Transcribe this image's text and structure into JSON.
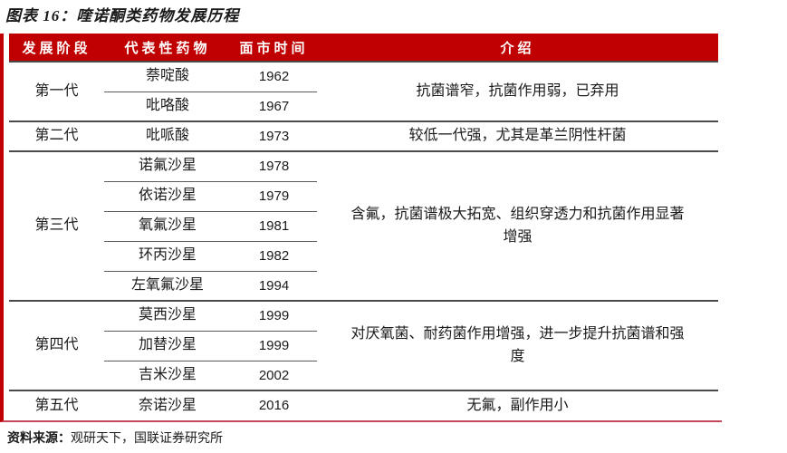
{
  "title": "图表 16：喹诺酮类药物发展历程",
  "colors": {
    "header_bg": "#c00000",
    "left_stripe": "#c00000",
    "bottom_rule": "#c4465a",
    "group_rule": "#4a4a4a"
  },
  "table": {
    "headers": {
      "stage": "发展阶段",
      "drug": "代表性药物",
      "year": "面市时间",
      "intro": "介绍"
    },
    "groups": [
      {
        "stage": "第一代",
        "drugs": [
          {
            "name": "萘啶酸",
            "year": "1962"
          },
          {
            "name": "吡咯酸",
            "year": "1967"
          }
        ],
        "intro": "抗菌谱窄，抗菌作用弱，已弃用"
      },
      {
        "stage": "第二代",
        "drugs": [
          {
            "name": "吡哌酸",
            "year": "1973"
          }
        ],
        "intro": "较低一代强，尤其是革兰阴性杆菌"
      },
      {
        "stage": "第三代",
        "drugs": [
          {
            "name": "诺氟沙星",
            "year": "1978"
          },
          {
            "name": "依诺沙星",
            "year": "1979"
          },
          {
            "name": "氧氟沙星",
            "year": "1981"
          },
          {
            "name": "环丙沙星",
            "year": "1982"
          },
          {
            "name": "左氧氟沙星",
            "year": "1994"
          }
        ],
        "intro": "含氟，抗菌谱极大拓宽、组织穿透力和抗菌作用显著增强"
      },
      {
        "stage": "第四代",
        "drugs": [
          {
            "name": "莫西沙星",
            "year": "1999"
          },
          {
            "name": "加替沙星",
            "year": "1999"
          },
          {
            "name": "吉米沙星",
            "year": "2002"
          }
        ],
        "intro": "对厌氧菌、耐药菌作用增强，进一步提升抗菌谱和强度"
      },
      {
        "stage": "第五代",
        "drugs": [
          {
            "name": "奈诺沙星",
            "year": "2016"
          }
        ],
        "intro": "无氟，副作用小"
      }
    ]
  },
  "footer": {
    "label": "资料来源：",
    "value": "观研天下，国联证券研究所"
  }
}
